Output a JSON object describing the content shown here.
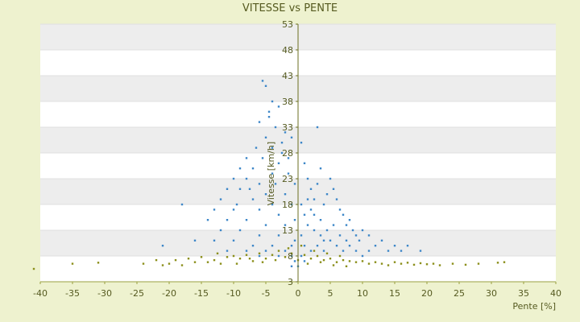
{
  "chart_data": {
    "type": "scatter",
    "title": "VITESSE vs PENTE",
    "xlabel": "Pente [%]",
    "ylabel": "Vitesse [km/h]",
    "xlim": [
      -40,
      40
    ],
    "ylim": [
      3,
      53
    ],
    "x_ticks": [
      -40,
      -35,
      -30,
      -25,
      -20,
      -15,
      -10,
      -5,
      0,
      5,
      10,
      15,
      20,
      25,
      30,
      35,
      40
    ],
    "y_ticks": [
      3,
      8,
      13,
      18,
      23,
      28,
      33,
      38,
      43,
      48,
      53
    ],
    "grid": "alternating horizontal bands",
    "series": [
      {
        "color": "#3d87c8",
        "points": [
          [
            -5.5,
            42
          ],
          [
            -5,
            41
          ],
          [
            -4,
            38
          ],
          [
            -3,
            37
          ],
          [
            -4.5,
            35
          ],
          [
            -6,
            34
          ],
          [
            -3.5,
            33
          ],
          [
            -2,
            32
          ],
          [
            -5,
            31
          ],
          [
            -1,
            31
          ],
          [
            -6.5,
            29
          ],
          [
            -4,
            29
          ],
          [
            -2.5,
            28
          ],
          [
            -8,
            27
          ],
          [
            -5.5,
            27
          ],
          [
            -3,
            26
          ],
          [
            -9,
            25
          ],
          [
            -7,
            25
          ],
          [
            -4,
            24
          ],
          [
            -1.5,
            24
          ],
          [
            -10,
            23
          ],
          [
            -8,
            23
          ],
          [
            -6,
            22
          ],
          [
            -3.5,
            22
          ],
          [
            -11,
            21
          ],
          [
            -9,
            21
          ],
          [
            -5,
            20
          ],
          [
            -2,
            20
          ],
          [
            -12,
            19
          ],
          [
            -7,
            19
          ],
          [
            -4,
            18
          ],
          [
            -1,
            18
          ],
          [
            -13,
            17
          ],
          [
            -10,
            17
          ],
          [
            -6,
            17
          ],
          [
            -3,
            16
          ],
          [
            -18,
            18
          ],
          [
            -14,
            15
          ],
          [
            -11,
            15
          ],
          [
            -8,
            15
          ],
          [
            -5,
            14
          ],
          [
            -2,
            14
          ],
          [
            -12,
            13
          ],
          [
            -9,
            13
          ],
          [
            -6,
            12
          ],
          [
            -3,
            12
          ],
          [
            -16,
            11
          ],
          [
            -13,
            11
          ],
          [
            -10,
            11
          ],
          [
            -7,
            10
          ],
          [
            -4,
            10
          ],
          [
            -1,
            10
          ],
          [
            -21,
            10
          ],
          [
            -11,
            9
          ],
          [
            -8,
            9
          ],
          [
            -5,
            9
          ],
          [
            -2,
            9
          ],
          [
            -3,
            8
          ],
          [
            -6,
            8
          ],
          [
            -1,
            8
          ],
          [
            -4.5,
            36
          ],
          [
            -2.5,
            30
          ],
          [
            -1.5,
            27
          ],
          [
            -7.5,
            21
          ],
          [
            -9.5,
            18
          ],
          [
            -0.5,
            22
          ],
          [
            -0.5,
            15
          ],
          [
            -0.5,
            11
          ],
          [
            0.5,
            30
          ],
          [
            1,
            26
          ],
          [
            1.5,
            23
          ],
          [
            2,
            21
          ],
          [
            2.5,
            19
          ],
          [
            3,
            33
          ],
          [
            3.5,
            25
          ],
          [
            3,
            22
          ],
          [
            2,
            17
          ],
          [
            1,
            16
          ],
          [
            1.5,
            14
          ],
          [
            2.5,
            13
          ],
          [
            3.5,
            15
          ],
          [
            4,
            18
          ],
          [
            4.5,
            20
          ],
          [
            5,
            23
          ],
          [
            5.5,
            21
          ],
          [
            6,
            19
          ],
          [
            6.5,
            17
          ],
          [
            7,
            16
          ],
          [
            7.5,
            14
          ],
          [
            8,
            15
          ],
          [
            8.5,
            13
          ],
          [
            9,
            12
          ],
          [
            9.5,
            11
          ],
          [
            10,
            13
          ],
          [
            11,
            12
          ],
          [
            12,
            10
          ],
          [
            13,
            11
          ],
          [
            14,
            9
          ],
          [
            15,
            10
          ],
          [
            16,
            9
          ],
          [
            17,
            10
          ],
          [
            19,
            9
          ],
          [
            0.5,
            12
          ],
          [
            1,
            10
          ],
          [
            2,
            9
          ],
          [
            3,
            10
          ],
          [
            4,
            9
          ],
          [
            5,
            11
          ],
          [
            6,
            10
          ],
          [
            7,
            9
          ],
          [
            8,
            10
          ],
          [
            9,
            9
          ],
          [
            10,
            8
          ],
          [
            11,
            9
          ],
          [
            4.5,
            13
          ],
          [
            5.5,
            14
          ],
          [
            6.5,
            12
          ],
          [
            7.5,
            11
          ],
          [
            1.5,
            19
          ],
          [
            2.5,
            16
          ],
          [
            0.5,
            18
          ],
          [
            3.5,
            12
          ],
          [
            4,
            11
          ],
          [
            -0.5,
            7
          ],
          [
            0.5,
            8
          ],
          [
            0,
            6
          ],
          [
            -1,
            6
          ],
          [
            1,
            7
          ]
        ]
      },
      {
        "color": "#8b8f1a",
        "points": [
          [
            -41,
            5.5
          ],
          [
            -35,
            6.5
          ],
          [
            -31,
            6.7
          ],
          [
            -24,
            6.5
          ],
          [
            -21,
            6.2
          ],
          [
            -19,
            7.2
          ],
          [
            -17,
            7.5
          ],
          [
            -15,
            7.8
          ],
          [
            -14,
            6.8
          ],
          [
            -13,
            7.2
          ],
          [
            -12,
            6.5
          ],
          [
            -11,
            7.8
          ],
          [
            -10,
            8
          ],
          [
            -9,
            7.5
          ],
          [
            -8,
            8.2
          ],
          [
            -7,
            7
          ],
          [
            -6,
            8.5
          ],
          [
            -5,
            7.5
          ],
          [
            -4,
            8.2
          ],
          [
            -3,
            9
          ],
          [
            -2,
            7.8
          ],
          [
            -1,
            8.5
          ],
          [
            0,
            7.2
          ],
          [
            1,
            8.2
          ],
          [
            2,
            7.5
          ],
          [
            3,
            8
          ],
          [
            4,
            7.2
          ],
          [
            5,
            7.5
          ],
          [
            6,
            6.8
          ],
          [
            7,
            7.2
          ],
          [
            8,
            7
          ],
          [
            9,
            6.8
          ],
          [
            10,
            7
          ],
          [
            11,
            6.5
          ],
          [
            12,
            6.8
          ],
          [
            13,
            6.5
          ],
          [
            14,
            6.2
          ],
          [
            15,
            6.8
          ],
          [
            16,
            6.5
          ],
          [
            17,
            6.7
          ],
          [
            18,
            6.3
          ],
          [
            19,
            6.6
          ],
          [
            20,
            6.4
          ],
          [
            21,
            6.5
          ],
          [
            22,
            6.2
          ],
          [
            24,
            6.5
          ],
          [
            26,
            6.3
          ],
          [
            28,
            6.5
          ],
          [
            31,
            6.7
          ],
          [
            32,
            6.8
          ],
          [
            -12.5,
            8.5
          ],
          [
            -9.5,
            6.5
          ],
          [
            -7.5,
            7.5
          ],
          [
            -5.5,
            6.8
          ],
          [
            -3.5,
            7.2
          ],
          [
            -1.5,
            9.5
          ],
          [
            0.5,
            10
          ],
          [
            1.5,
            6.5
          ],
          [
            2.5,
            9
          ],
          [
            3.5,
            6.8
          ],
          [
            4.5,
            8.5
          ],
          [
            5.5,
            6.2
          ],
          [
            6.5,
            8
          ],
          [
            7.5,
            6
          ],
          [
            -16,
            6.8
          ],
          [
            -18,
            6.2
          ],
          [
            -20,
            6.5
          ],
          [
            -22,
            7.2
          ]
        ]
      }
    ]
  }
}
